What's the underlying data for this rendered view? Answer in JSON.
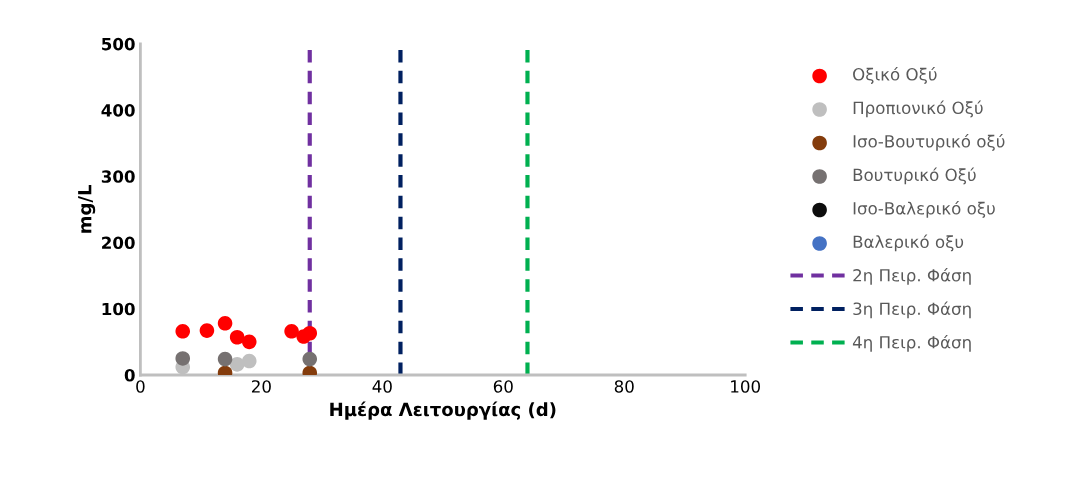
{
  "chart_data": {
    "type": "scatter",
    "xlabel": "Ημέρα Λειτουργίας (d)",
    "ylabel": "mg/L",
    "xlim": [
      0,
      100
    ],
    "xticks": [
      0,
      20,
      40,
      60,
      80,
      100
    ],
    "ylim": [
      0,
      500
    ],
    "yticks": [
      0,
      100,
      200,
      300,
      400,
      500
    ],
    "grid": false,
    "legend": "right",
    "marker": "circle",
    "series": [
      {
        "name": "Οξικό Οξύ",
        "color": "#ff0000",
        "x": [
          7,
          11,
          14,
          16,
          18,
          25,
          27,
          28
        ],
        "values": [
          66,
          67,
          78,
          57,
          50,
          66,
          58,
          63
        ]
      },
      {
        "name": "Προπιονικό Οξύ",
        "color": "#bfbfbf",
        "x": [
          7,
          16,
          18
        ],
        "values": [
          12,
          16,
          21
        ]
      },
      {
        "name": "Ισο-Βουτυρικό οξύ",
        "color": "#843c0c",
        "x": [
          14,
          28
        ],
        "values": [
          3,
          3
        ]
      },
      {
        "name": "Βουτυρικό Οξύ",
        "color": "#767171",
        "x": [
          7,
          14,
          28
        ],
        "values": [
          25,
          24,
          24
        ]
      },
      {
        "name": "Ισο-Βαλερικό οξυ",
        "color": "#0d0d0d"
      },
      {
        "name": "Βαλερικό οξυ",
        "color": "#4472c4"
      },
      {
        "type": "line",
        "name": "2η Πειρ. Φάση",
        "color": "#7030a0",
        "line_style": "dashed",
        "marker": "none",
        "x": [
          28,
          28
        ],
        "values": [
          0,
          500
        ]
      },
      {
        "type": "line",
        "name": "3η Πειρ. Φάση",
        "color": "#002060",
        "line_style": "dashed",
        "marker": "none",
        "x": [
          43,
          43
        ],
        "values": [
          0,
          500
        ]
      },
      {
        "type": "line",
        "name": "4η Πειρ. Φάση",
        "color": "#00b050",
        "line_style": "dashed",
        "marker": "none",
        "x": [
          64,
          64
        ],
        "values": [
          0,
          500
        ]
      }
    ]
  }
}
